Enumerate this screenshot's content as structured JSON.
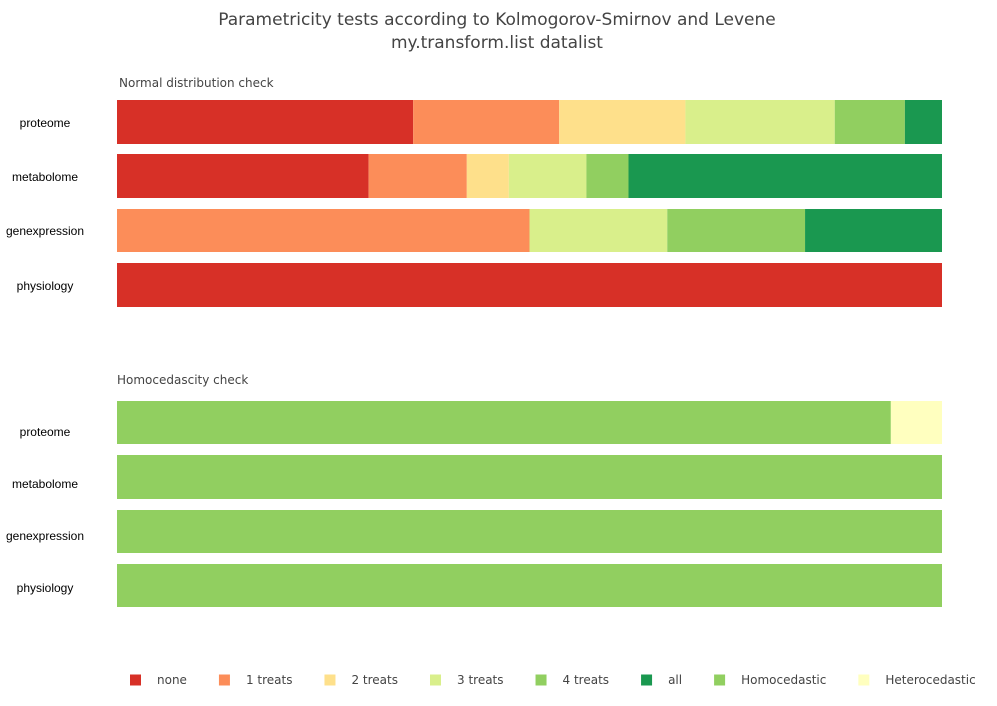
{
  "title_line1": "Parametricity tests according to Kolmogorov-Smirnov and Levene",
  "title_line2": "my.transform.list datalist",
  "chart_data": [
    {
      "type": "bar",
      "orientation": "horizontal",
      "stacked": true,
      "title": "Normal distribution check",
      "categories": [
        "proteome",
        "metabolome",
        "genexpression",
        "physiology"
      ],
      "xlim": [
        0,
        1
      ],
      "series": [
        {
          "name": "none",
          "color": "#d73027",
          "values": [
            0.359,
            0.305,
            0.0,
            1.0
          ]
        },
        {
          "name": "1 treats",
          "color": "#fc8d59",
          "values": [
            0.177,
            0.119,
            0.5,
            0.0
          ]
        },
        {
          "name": "2 treats",
          "color": "#fee08b",
          "values": [
            0.153,
            0.051,
            0.0,
            0.0
          ]
        },
        {
          "name": "3 treats",
          "color": "#d9ef8b",
          "values": [
            0.181,
            0.094,
            0.167,
            0.0
          ]
        },
        {
          "name": "4 treats",
          "color": "#91cf60",
          "values": [
            0.085,
            0.051,
            0.167,
            0.0
          ]
        },
        {
          "name": "all",
          "color": "#1a9850",
          "values": [
            0.045,
            0.38,
            0.166,
            0.0
          ]
        }
      ]
    },
    {
      "type": "bar",
      "orientation": "horizontal",
      "stacked": true,
      "title": "Homocedascity check",
      "categories": [
        "proteome",
        "metabolome",
        "genexpression",
        "physiology"
      ],
      "xlim": [
        0,
        1
      ],
      "series": [
        {
          "name": "Homocedastic",
          "color": "#91cf60",
          "values": [
            0.938,
            1.0,
            1.0,
            1.0
          ]
        },
        {
          "name": "Heterocedastic",
          "color": "#ffffbf",
          "values": [
            0.062,
            0.0,
            0.0,
            0.0
          ]
        }
      ]
    }
  ],
  "legend": [
    {
      "name": "none",
      "color": "#d73027"
    },
    {
      "name": "1 treats",
      "color": "#fc8d59"
    },
    {
      "name": "2 treats",
      "color": "#fee08b"
    },
    {
      "name": "3 treats",
      "color": "#d9ef8b"
    },
    {
      "name": "4 treats",
      "color": "#91cf60"
    },
    {
      "name": "all",
      "color": "#1a9850"
    },
    {
      "name": "Homocedastic",
      "color": "#91cf60"
    },
    {
      "name": "Heterocedastic",
      "color": "#ffffbf"
    }
  ]
}
